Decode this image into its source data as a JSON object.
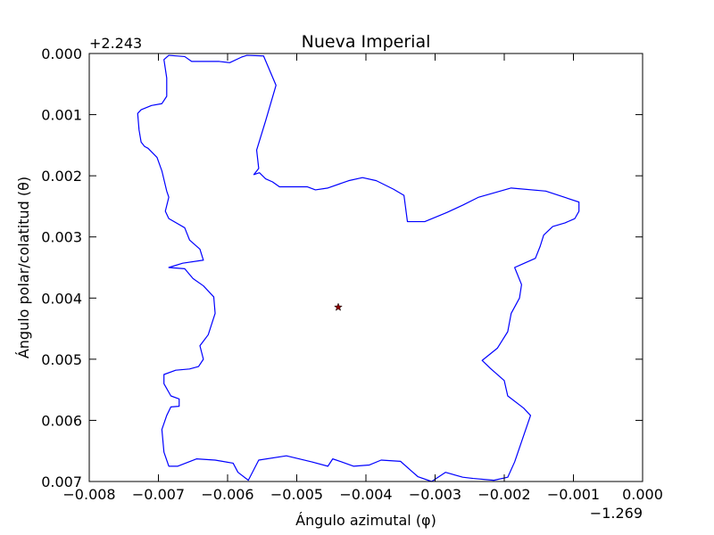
{
  "chart_data": {
    "type": "line",
    "title": "Nueva Imperial",
    "xlabel": "Ángulo azimutal (φ)",
    "ylabel": "Ángulo polar/colatitud (θ)",
    "x_offset_label": "−1.269",
    "y_offset_label": "+2.243",
    "xlim": [
      -0.008,
      0.0
    ],
    "ylim": [
      0.007,
      0.0
    ],
    "x_ticks": [
      -0.008,
      -0.007,
      -0.006,
      -0.005,
      -0.004,
      -0.003,
      -0.002,
      -0.001,
      0.0
    ],
    "x_tick_labels": [
      "−0.008",
      "−0.007",
      "−0.006",
      "−0.005",
      "−0.004",
      "−0.003",
      "−0.002",
      "−0.001",
      "0.000"
    ],
    "y_ticks": [
      0.0,
      0.001,
      0.002,
      0.003,
      0.004,
      0.005,
      0.006,
      0.007
    ],
    "y_tick_labels": [
      "0.000",
      "0.001",
      "0.002",
      "0.003",
      "0.004",
      "0.005",
      "0.006",
      "0.007"
    ],
    "series": [
      {
        "color": "#0000ff",
        "points": [
          [
            -0.00685,
            3e-05
          ],
          [
            -0.00662,
            5e-05
          ],
          [
            -0.00652,
            0.00013
          ],
          [
            -0.00612,
            0.00013
          ],
          [
            -0.00597,
            0.00015
          ],
          [
            -0.0058,
            6e-05
          ],
          [
            -0.00572,
            3e-05
          ],
          [
            -0.00548,
            4e-05
          ],
          [
            -0.0053,
            0.00052
          ],
          [
            -0.00545,
            0.0011
          ],
          [
            -0.00558,
            0.00158
          ],
          [
            -0.00555,
            0.00188
          ],
          [
            -0.00562,
            0.00198
          ],
          [
            -0.00554,
            0.00195
          ],
          [
            -0.00545,
            0.00205
          ],
          [
            -0.00535,
            0.0021
          ],
          [
            -0.00525,
            0.00218
          ],
          [
            -0.00485,
            0.00218
          ],
          [
            -0.00473,
            0.00223
          ],
          [
            -0.00455,
            0.0022
          ],
          [
            -0.00425,
            0.00208
          ],
          [
            -0.00405,
            0.00203
          ],
          [
            -0.00385,
            0.00208
          ],
          [
            -0.0036,
            0.00222
          ],
          [
            -0.00345,
            0.00232
          ],
          [
            -0.0034,
            0.00275
          ],
          [
            -0.00315,
            0.00275
          ],
          [
            -0.00283,
            0.0026
          ],
          [
            -0.0026,
            0.00248
          ],
          [
            -0.00237,
            0.00235
          ],
          [
            -0.0019,
            0.0022
          ],
          [
            -0.0014,
            0.00225
          ],
          [
            -0.00092,
            0.00243
          ],
          [
            -0.00092,
            0.00258
          ],
          [
            -0.00098,
            0.0027
          ],
          [
            -0.00112,
            0.00277
          ],
          [
            -0.0013,
            0.00283
          ],
          [
            -0.00143,
            0.00297
          ],
          [
            -0.00148,
            0.00315
          ],
          [
            -0.00155,
            0.00335
          ],
          [
            -0.00175,
            0.00345
          ],
          [
            -0.00185,
            0.0035
          ],
          [
            -0.00175,
            0.00378
          ],
          [
            -0.00178,
            0.004
          ],
          [
            -0.0019,
            0.00425
          ],
          [
            -0.00195,
            0.00455
          ],
          [
            -0.0021,
            0.00482
          ],
          [
            -0.00232,
            0.00502
          ],
          [
            -0.0022,
            0.00515
          ],
          [
            -0.002,
            0.00535
          ],
          [
            -0.00195,
            0.0056
          ],
          [
            -0.00172,
            0.0058
          ],
          [
            -0.00162,
            0.00592
          ],
          [
            -0.00172,
            0.00625
          ],
          [
            -0.00185,
            0.00668
          ],
          [
            -0.00195,
            0.00693
          ],
          [
            -0.00215,
            0.00698
          ],
          [
            -0.00245,
            0.00695
          ],
          [
            -0.0026,
            0.00693
          ],
          [
            -0.00285,
            0.00685
          ],
          [
            -0.00305,
            0.007
          ],
          [
            -0.00325,
            0.00692
          ],
          [
            -0.00335,
            0.00682
          ],
          [
            -0.0035,
            0.00667
          ],
          [
            -0.00378,
            0.00665
          ],
          [
            -0.00395,
            0.00673
          ],
          [
            -0.00418,
            0.00675
          ],
          [
            -0.00435,
            0.00668
          ],
          [
            -0.00448,
            0.00663
          ],
          [
            -0.00455,
            0.00675
          ],
          [
            -0.00478,
            0.00668
          ],
          [
            -0.00515,
            0.00658
          ],
          [
            -0.00555,
            0.00665
          ],
          [
            -0.0057,
            0.00698
          ],
          [
            -0.00585,
            0.00685
          ],
          [
            -0.00592,
            0.0067
          ],
          [
            -0.00618,
            0.00665
          ],
          [
            -0.00645,
            0.00663
          ],
          [
            -0.00672,
            0.00675
          ],
          [
            -0.00685,
            0.00675
          ],
          [
            -0.00692,
            0.00652
          ],
          [
            -0.00695,
            0.00615
          ],
          [
            -0.00688,
            0.00592
          ],
          [
            -0.00682,
            0.00578
          ],
          [
            -0.0067,
            0.00577
          ],
          [
            -0.0067,
            0.00565
          ],
          [
            -0.00682,
            0.0056
          ],
          [
            -0.00692,
            0.0054
          ],
          [
            -0.00692,
            0.00525
          ],
          [
            -0.00675,
            0.00518
          ],
          [
            -0.00655,
            0.00516
          ],
          [
            -0.00642,
            0.00512
          ],
          [
            -0.00635,
            0.005
          ],
          [
            -0.0064,
            0.00478
          ],
          [
            -0.00628,
            0.0046
          ],
          [
            -0.00618,
            0.00425
          ],
          [
            -0.0062,
            0.00398
          ],
          [
            -0.00635,
            0.0038
          ],
          [
            -0.0065,
            0.00368
          ],
          [
            -0.00662,
            0.00352
          ],
          [
            -0.00685,
            0.0035
          ],
          [
            -0.00665,
            0.00343
          ],
          [
            -0.00635,
            0.00338
          ],
          [
            -0.0064,
            0.0032
          ],
          [
            -0.00655,
            0.00305
          ],
          [
            -0.00662,
            0.00285
          ],
          [
            -0.00685,
            0.0027
          ],
          [
            -0.0069,
            0.00258
          ],
          [
            -0.00685,
            0.00235
          ],
          [
            -0.00688,
            0.00225
          ],
          [
            -0.00695,
            0.00192
          ],
          [
            -0.00702,
            0.0017
          ],
          [
            -0.00715,
            0.00155
          ],
          [
            -0.0072,
            0.00152
          ],
          [
            -0.00725,
            0.00145
          ],
          [
            -0.00728,
            0.00125
          ],
          [
            -0.0073,
            0.00098
          ],
          [
            -0.00725,
            0.00092
          ],
          [
            -0.0071,
            0.00085
          ],
          [
            -0.00695,
            0.00082
          ],
          [
            -0.00688,
            0.0007
          ],
          [
            -0.00688,
            0.0004
          ],
          [
            -0.00692,
            0.0001
          ],
          [
            -0.00685,
            3e-05
          ]
        ]
      }
    ],
    "points": [
      {
        "marker": "star",
        "color": "#8b0000",
        "x": -0.0044,
        "y": 0.00415
      }
    ]
  }
}
